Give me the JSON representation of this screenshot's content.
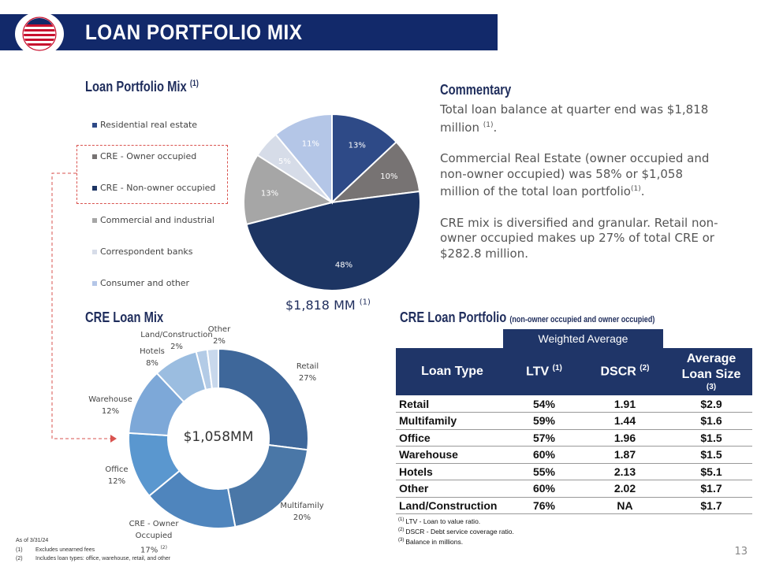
{
  "header": {
    "title": "LOAN PORTFOLIO MIX",
    "logo_icon": "american-flag-circle-logo",
    "bar_color": "#12296a"
  },
  "portfolio": {
    "title": "Loan Portfolio Mix",
    "title_sup": "(1)",
    "legend": [
      {
        "label": "Residential real estate",
        "color": "#2e4a87"
      },
      {
        "label": "CRE - Owner occupied",
        "color": "#777373"
      },
      {
        "label": "CRE - Non-owner occupied",
        "color": "#1d3563"
      },
      {
        "label": "Commercial and industrial",
        "color": "#a6a6a6"
      },
      {
        "label": "Correspondent banks",
        "color": "#d6dce8"
      },
      {
        "label": "Consumer and other",
        "color": "#b4c6e7"
      }
    ],
    "total": "$1,818 MM",
    "total_sup": "(1)"
  },
  "commentary": {
    "title": "Commentary",
    "p1": "Total loan balance at quarter end was $1,818 million",
    "p1_sup": "(1)",
    "p1_end": ".",
    "p2": "Commercial Real Estate (owner occupied and non-owner occupied) was 58% or $1,058 million of the total loan portfolio",
    "p2_sup": "(1)",
    "p2_end": ".",
    "p3": "CRE mix is diversified and granular. Retail non-owner occupied makes up 27% of total CRE or $282.8 million."
  },
  "cre_mix": {
    "title": "CRE Loan Mix",
    "center": "$1,058MM",
    "labels": {
      "retail": [
        "Retail",
        "27%"
      ],
      "multifamily": [
        "Multifamily",
        "20%"
      ],
      "owner": [
        "CRE - Owner",
        "Occupied",
        "17%"
      ],
      "owner_sup": "(2)",
      "office": [
        "Office",
        "12%"
      ],
      "warehouse": [
        "Warehouse",
        "12%"
      ],
      "hotels": [
        "Hotels",
        "8%"
      ],
      "land": [
        "Land/Construction",
        "2%"
      ],
      "other": [
        "Other",
        "2%"
      ]
    }
  },
  "cre_portfolio": {
    "title": "CRE Loan Portfolio",
    "subtitle": "(non-owner occupied and owner occupied)",
    "weighted_average": "Weighted Average",
    "headers": {
      "type": "Loan Type",
      "ltv": "LTV",
      "ltv_sup": "(1)",
      "dscr": "DSCR",
      "dscr_sup": "(2)",
      "size1": "Average",
      "size2": "Loan Size",
      "size_sup": "(3)"
    },
    "rows": [
      {
        "type": "Retail",
        "ltv": "54%",
        "dscr": "1.91",
        "size": "$2.9"
      },
      {
        "type": "Multifamily",
        "ltv": "59%",
        "dscr": "1.44",
        "size": "$1.6"
      },
      {
        "type": "Office",
        "ltv": "57%",
        "dscr": "1.96",
        "size": "$1.5"
      },
      {
        "type": "Warehouse",
        "ltv": "60%",
        "dscr": "1.87",
        "size": "$1.5"
      },
      {
        "type": "Hotels",
        "ltv": "55%",
        "dscr": "2.13",
        "size": "$5.1"
      },
      {
        "type": "Other",
        "ltv": "60%",
        "dscr": "2.02",
        "size": "$1.7"
      },
      {
        "type": "Land/Construction",
        "ltv": "76%",
        "dscr": "NA",
        "size": "$1.7"
      }
    ],
    "footnotes": [
      {
        "sup": "(1)",
        "text": "LTV - Loan to value ratio."
      },
      {
        "sup": "(2)",
        "text": "DSCR - Debt service coverage ratio."
      },
      {
        "sup": "(3)",
        "text": "Balance in millions."
      }
    ]
  },
  "footnotes": {
    "asof": "As of 3/31/24",
    "n1": "(1)",
    "t1": "Excludes unearned fees",
    "n2": "(2)",
    "t2": "Includes loan types: office, warehouse, retail, and other"
  },
  "page_number": "13",
  "chart_data": [
    {
      "type": "pie",
      "title": "Loan Portfolio Mix",
      "categories": [
        "Residential real estate",
        "CRE - Owner occupied",
        "CRE - Non-owner occupied",
        "Commercial and industrial",
        "Correspondent banks",
        "Consumer and other"
      ],
      "values": [
        13,
        10,
        48,
        13,
        5,
        11
      ],
      "colors": [
        "#2e4a87",
        "#777373",
        "#1d3563",
        "#a6a6a6",
        "#d6dce8",
        "#b4c6e7"
      ],
      "label_colors": [
        "#ffffff",
        "#ffffff",
        "#ffffff",
        "#ffffff",
        "#ffffff",
        "#ffffff"
      ],
      "data_labels": [
        "13%",
        "10%",
        "48%",
        "13%",
        "5%",
        "11%"
      ]
    },
    {
      "type": "pie",
      "title": "CRE Loan Mix",
      "categories": [
        "Retail",
        "Multifamily",
        "CRE - Owner Occupied",
        "Office",
        "Warehouse",
        "Hotels",
        "Land/Construction",
        "Other"
      ],
      "values": [
        27,
        20,
        17,
        12,
        12,
        8,
        2,
        2
      ],
      "colors": [
        "#3e679a",
        "#4a77a7",
        "#4f85bd",
        "#5a97cf",
        "#7da8d8",
        "#9bbde0",
        "#b3cbe6",
        "#c8d8ec"
      ]
    }
  ]
}
